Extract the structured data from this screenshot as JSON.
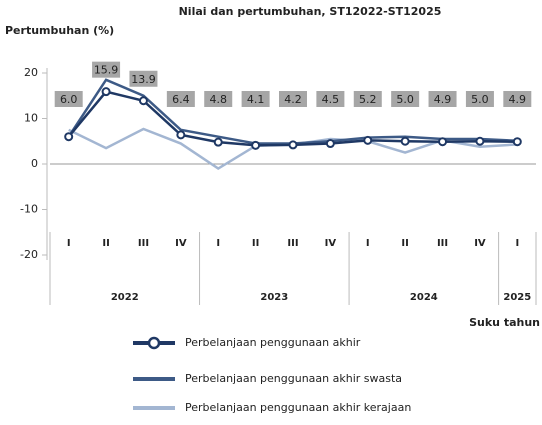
{
  "chart_data": {
    "type": "line",
    "title": "Nilai dan pertumbuhan, ST12022-ST12025",
    "y_label": "Pertumbuhan (%)",
    "x_label": "Suku tahun",
    "categories": [
      "I",
      "II",
      "III",
      "IV",
      "I",
      "II",
      "III",
      "IV",
      "I",
      "II",
      "III",
      "IV",
      "I"
    ],
    "x_groups": [
      {
        "label": "2022",
        "span": 4
      },
      {
        "label": "2023",
        "span": 4
      },
      {
        "label": "2024",
        "span": 4
      },
      {
        "label": "2025",
        "span": 1
      }
    ],
    "ylim": [
      -20,
      20
    ],
    "yticks": [
      -20,
      -10,
      0,
      10,
      20
    ],
    "series": [
      {
        "name": "Perbelanjaan penggunaan akhir",
        "color": "#1f3864",
        "markers": true,
        "values": [
          6.0,
          15.9,
          13.9,
          6.4,
          4.8,
          4.1,
          4.2,
          4.5,
          5.2,
          5.0,
          4.9,
          5.0,
          4.9
        ],
        "value_labels": [
          "6.0",
          "15.9",
          "13.9",
          "6.4",
          "4.8",
          "4.1",
          "4.2",
          "4.5",
          "5.2",
          "5.0",
          "4.9",
          "5.0",
          "4.9"
        ]
      },
      {
        "name": "Perbelanjaan penggunaan akhir swasta",
        "color": "#3d5a86",
        "markers": false,
        "values": [
          6.0,
          18.5,
          15.0,
          7.5,
          6.0,
          4.5,
          4.5,
          5.0,
          5.8,
          6.0,
          5.5,
          5.5,
          5.1
        ]
      },
      {
        "name": "Perbelanjaan penggunaan akhir kerajaan",
        "color": "#a3b6d2",
        "markers": false,
        "values": [
          7.5,
          3.5,
          7.7,
          4.5,
          -1.0,
          4.0,
          4.3,
          5.5,
          5.0,
          2.5,
          5.2,
          3.8,
          4.3
        ]
      }
    ]
  }
}
